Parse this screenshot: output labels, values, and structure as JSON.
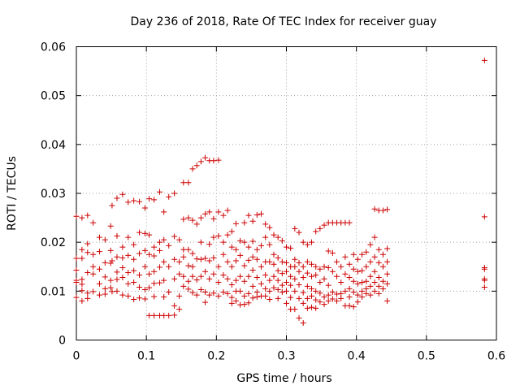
{
  "chart_data": {
    "type": "scatter",
    "title": "Day 236 of 2018, Rate Of TEC Index for receiver guay",
    "xlabel": "GPS time / hours",
    "ylabel": "ROTI / TECUs",
    "xlim": [
      0,
      0.6
    ],
    "ylim": [
      0,
      0.06
    ],
    "x_ticks": [
      "0",
      "0.1",
      "0.2",
      "0.3",
      "0.4",
      "0.5",
      "0.6"
    ],
    "y_ticks": [
      "0",
      "0.01",
      "0.02",
      "0.03",
      "0.04",
      "0.05",
      "0.06"
    ],
    "grid": true,
    "marker": "+",
    "color": "#cc0000",
    "points": [
      [
        0.0,
        0.0253
      ],
      [
        0.0,
        0.0167
      ],
      [
        0.0,
        0.0143
      ],
      [
        0.0,
        0.0122
      ],
      [
        0.0,
        0.0118
      ],
      [
        0.0,
        0.0087
      ],
      [
        0.008,
        0.025
      ],
      [
        0.008,
        0.0185
      ],
      [
        0.008,
        0.0167
      ],
      [
        0.008,
        0.0124
      ],
      [
        0.008,
        0.0114
      ],
      [
        0.008,
        0.0101
      ],
      [
        0.008,
        0.008
      ],
      [
        0.016,
        0.0255
      ],
      [
        0.016,
        0.0197
      ],
      [
        0.016,
        0.0179
      ],
      [
        0.016,
        0.0138
      ],
      [
        0.016,
        0.0096
      ],
      [
        0.016,
        0.0085
      ],
      [
        0.024,
        0.024
      ],
      [
        0.024,
        0.0175
      ],
      [
        0.024,
        0.015
      ],
      [
        0.024,
        0.0135
      ],
      [
        0.024,
        0.0099
      ],
      [
        0.033,
        0.021
      ],
      [
        0.033,
        0.0181
      ],
      [
        0.033,
        0.0145
      ],
      [
        0.033,
        0.0115
      ],
      [
        0.033,
        0.0092
      ],
      [
        0.041,
        0.0205
      ],
      [
        0.041,
        0.0158
      ],
      [
        0.041,
        0.0129
      ],
      [
        0.041,
        0.0105
      ],
      [
        0.041,
        0.0094
      ],
      [
        0.049,
        0.0233
      ],
      [
        0.049,
        0.0183
      ],
      [
        0.049,
        0.0157
      ],
      [
        0.049,
        0.0122
      ],
      [
        0.049,
        0.0107
      ],
      [
        0.051,
        0.0275
      ],
      [
        0.051,
        0.0162
      ],
      [
        0.051,
        0.0099
      ],
      [
        0.058,
        0.029
      ],
      [
        0.058,
        0.0213
      ],
      [
        0.058,
        0.017
      ],
      [
        0.058,
        0.0139
      ],
      [
        0.058,
        0.0124
      ],
      [
        0.058,
        0.01
      ],
      [
        0.066,
        0.0298
      ],
      [
        0.066,
        0.019
      ],
      [
        0.066,
        0.0168
      ],
      [
        0.066,
        0.0148
      ],
      [
        0.066,
        0.0128
      ],
      [
        0.066,
        0.0092
      ],
      [
        0.074,
        0.0282
      ],
      [
        0.074,
        0.021
      ],
      [
        0.074,
        0.0173
      ],
      [
        0.074,
        0.0138
      ],
      [
        0.074,
        0.0115
      ],
      [
        0.074,
        0.009
      ],
      [
        0.082,
        0.0285
      ],
      [
        0.082,
        0.0195
      ],
      [
        0.082,
        0.0165
      ],
      [
        0.082,
        0.0142
      ],
      [
        0.082,
        0.0118
      ],
      [
        0.082,
        0.0083
      ],
      [
        0.09,
        0.0283
      ],
      [
        0.09,
        0.022
      ],
      [
        0.09,
        0.0177
      ],
      [
        0.09,
        0.0133
      ],
      [
        0.09,
        0.0108
      ],
      [
        0.09,
        0.0086
      ],
      [
        0.098,
        0.027
      ],
      [
        0.098,
        0.0218
      ],
      [
        0.098,
        0.0183
      ],
      [
        0.098,
        0.015
      ],
      [
        0.098,
        0.0103
      ],
      [
        0.098,
        0.0084
      ],
      [
        0.104,
        0.0289
      ],
      [
        0.104,
        0.0215
      ],
      [
        0.104,
        0.0175
      ],
      [
        0.104,
        0.0135
      ],
      [
        0.104,
        0.0107
      ],
      [
        0.104,
        0.005
      ],
      [
        0.111,
        0.0287
      ],
      [
        0.111,
        0.019
      ],
      [
        0.111,
        0.0172
      ],
      [
        0.111,
        0.014
      ],
      [
        0.111,
        0.0116
      ],
      [
        0.111,
        0.0089
      ],
      [
        0.111,
        0.005
      ],
      [
        0.119,
        0.0303
      ],
      [
        0.119,
        0.02
      ],
      [
        0.119,
        0.0183
      ],
      [
        0.119,
        0.0149
      ],
      [
        0.119,
        0.0117
      ],
      [
        0.119,
        0.005
      ],
      [
        0.125,
        0.0262
      ],
      [
        0.125,
        0.0205
      ],
      [
        0.125,
        0.016
      ],
      [
        0.125,
        0.0122
      ],
      [
        0.125,
        0.0088
      ],
      [
        0.125,
        0.005
      ],
      [
        0.132,
        0.0293
      ],
      [
        0.132,
        0.0193
      ],
      [
        0.132,
        0.015
      ],
      [
        0.132,
        0.0098
      ],
      [
        0.132,
        0.005
      ],
      [
        0.14,
        0.03
      ],
      [
        0.14,
        0.0212
      ],
      [
        0.14,
        0.0165
      ],
      [
        0.14,
        0.0125
      ],
      [
        0.14,
        0.007
      ],
      [
        0.14,
        0.0051
      ],
      [
        0.147,
        0.0205
      ],
      [
        0.147,
        0.016
      ],
      [
        0.147,
        0.0135
      ],
      [
        0.147,
        0.009
      ],
      [
        0.147,
        0.0063
      ],
      [
        0.153,
        0.0322
      ],
      [
        0.153,
        0.0247
      ],
      [
        0.153,
        0.0185
      ],
      [
        0.153,
        0.017
      ],
      [
        0.153,
        0.013
      ],
      [
        0.153,
        0.011
      ],
      [
        0.16,
        0.0322
      ],
      [
        0.16,
        0.025
      ],
      [
        0.16,
        0.0185
      ],
      [
        0.16,
        0.0152
      ],
      [
        0.16,
        0.012
      ],
      [
        0.16,
        0.0104
      ],
      [
        0.166,
        0.035
      ],
      [
        0.166,
        0.0245
      ],
      [
        0.166,
        0.0177
      ],
      [
        0.166,
        0.015
      ],
      [
        0.166,
        0.013
      ],
      [
        0.166,
        0.0097
      ],
      [
        0.172,
        0.0357
      ],
      [
        0.172,
        0.0237
      ],
      [
        0.172,
        0.0166
      ],
      [
        0.172,
        0.0123
      ],
      [
        0.172,
        0.0092
      ],
      [
        0.178,
        0.0365
      ],
      [
        0.178,
        0.025
      ],
      [
        0.178,
        0.02
      ],
      [
        0.178,
        0.0165
      ],
      [
        0.178,
        0.013
      ],
      [
        0.178,
        0.0103
      ],
      [
        0.184,
        0.0373
      ],
      [
        0.184,
        0.0258
      ],
      [
        0.184,
        0.0167
      ],
      [
        0.184,
        0.014
      ],
      [
        0.184,
        0.0098
      ],
      [
        0.184,
        0.0077
      ],
      [
        0.19,
        0.0367
      ],
      [
        0.19,
        0.0262
      ],
      [
        0.19,
        0.0196
      ],
      [
        0.19,
        0.0162
      ],
      [
        0.19,
        0.0125
      ],
      [
        0.19,
        0.0092
      ],
      [
        0.196,
        0.0367
      ],
      [
        0.196,
        0.0248
      ],
      [
        0.196,
        0.021
      ],
      [
        0.196,
        0.0168
      ],
      [
        0.196,
        0.0135
      ],
      [
        0.196,
        0.0096
      ],
      [
        0.203,
        0.0368
      ],
      [
        0.203,
        0.0262
      ],
      [
        0.203,
        0.0213
      ],
      [
        0.203,
        0.015
      ],
      [
        0.203,
        0.0118
      ],
      [
        0.203,
        0.009
      ],
      [
        0.21,
        0.0255
      ],
      [
        0.21,
        0.02
      ],
      [
        0.21,
        0.0175
      ],
      [
        0.21,
        0.0133
      ],
      [
        0.21,
        0.0098
      ],
      [
        0.216,
        0.0265
      ],
      [
        0.216,
        0.0215
      ],
      [
        0.216,
        0.016
      ],
      [
        0.216,
        0.0125
      ],
      [
        0.216,
        0.0095
      ],
      [
        0.222,
        0.0222
      ],
      [
        0.222,
        0.019
      ],
      [
        0.222,
        0.015
      ],
      [
        0.222,
        0.0113
      ],
      [
        0.222,
        0.0087
      ],
      [
        0.222,
        0.0075
      ],
      [
        0.228,
        0.0238
      ],
      [
        0.228,
        0.0185
      ],
      [
        0.228,
        0.0162
      ],
      [
        0.228,
        0.0122
      ],
      [
        0.228,
        0.01
      ],
      [
        0.228,
        0.008
      ],
      [
        0.234,
        0.0203
      ],
      [
        0.234,
        0.0173
      ],
      [
        0.234,
        0.013
      ],
      [
        0.234,
        0.01
      ],
      [
        0.234,
        0.0072
      ],
      [
        0.24,
        0.024
      ],
      [
        0.24,
        0.02
      ],
      [
        0.24,
        0.0152
      ],
      [
        0.24,
        0.012
      ],
      [
        0.24,
        0.009
      ],
      [
        0.24,
        0.0073
      ],
      [
        0.246,
        0.0255
      ],
      [
        0.246,
        0.019
      ],
      [
        0.246,
        0.0163
      ],
      [
        0.246,
        0.013
      ],
      [
        0.246,
        0.0095
      ],
      [
        0.246,
        0.0076
      ],
      [
        0.252,
        0.0243
      ],
      [
        0.252,
        0.0202
      ],
      [
        0.252,
        0.017
      ],
      [
        0.252,
        0.0143
      ],
      [
        0.252,
        0.011
      ],
      [
        0.252,
        0.0086
      ],
      [
        0.258,
        0.0256
      ],
      [
        0.258,
        0.0185
      ],
      [
        0.258,
        0.0165
      ],
      [
        0.258,
        0.0128
      ],
      [
        0.258,
        0.0098
      ],
      [
        0.258,
        0.0088
      ],
      [
        0.264,
        0.0258
      ],
      [
        0.264,
        0.0193
      ],
      [
        0.264,
        0.015
      ],
      [
        0.264,
        0.0115
      ],
      [
        0.264,
        0.009
      ],
      [
        0.27,
        0.0237
      ],
      [
        0.27,
        0.021
      ],
      [
        0.27,
        0.016
      ],
      [
        0.27,
        0.0133
      ],
      [
        0.27,
        0.0105
      ],
      [
        0.27,
        0.009
      ],
      [
        0.276,
        0.023
      ],
      [
        0.276,
        0.0195
      ],
      [
        0.276,
        0.016
      ],
      [
        0.276,
        0.0122
      ],
      [
        0.276,
        0.01
      ],
      [
        0.276,
        0.0083
      ],
      [
        0.282,
        0.0215
      ],
      [
        0.282,
        0.0175
      ],
      [
        0.282,
        0.0155
      ],
      [
        0.282,
        0.013
      ],
      [
        0.282,
        0.0107
      ],
      [
        0.288,
        0.021
      ],
      [
        0.288,
        0.0168
      ],
      [
        0.288,
        0.0142
      ],
      [
        0.288,
        0.0122
      ],
      [
        0.288,
        0.0103
      ],
      [
        0.288,
        0.0085
      ],
      [
        0.294,
        0.0203
      ],
      [
        0.294,
        0.016
      ],
      [
        0.294,
        0.0136
      ],
      [
        0.294,
        0.0112
      ],
      [
        0.294,
        0.0098
      ],
      [
        0.3,
        0.019
      ],
      [
        0.3,
        0.0158
      ],
      [
        0.3,
        0.014
      ],
      [
        0.3,
        0.0118
      ],
      [
        0.3,
        0.01
      ],
      [
        0.3,
        0.0075
      ],
      [
        0.306,
        0.0188
      ],
      [
        0.306,
        0.015
      ],
      [
        0.306,
        0.013
      ],
      [
        0.306,
        0.0112
      ],
      [
        0.306,
        0.0087
      ],
      [
        0.306,
        0.0063
      ],
      [
        0.312,
        0.0228
      ],
      [
        0.312,
        0.0165
      ],
      [
        0.312,
        0.015
      ],
      [
        0.312,
        0.0125
      ],
      [
        0.312,
        0.01
      ],
      [
        0.312,
        0.0063
      ],
      [
        0.318,
        0.022
      ],
      [
        0.318,
        0.0158
      ],
      [
        0.318,
        0.014
      ],
      [
        0.318,
        0.0113
      ],
      [
        0.318,
        0.0085
      ],
      [
        0.318,
        0.0045
      ],
      [
        0.324,
        0.02
      ],
      [
        0.324,
        0.015
      ],
      [
        0.324,
        0.0128
      ],
      [
        0.324,
        0.0097
      ],
      [
        0.324,
        0.0075
      ],
      [
        0.324,
        0.0035
      ],
      [
        0.33,
        0.0195
      ],
      [
        0.33,
        0.016
      ],
      [
        0.33,
        0.0137
      ],
      [
        0.33,
        0.011
      ],
      [
        0.33,
        0.0085
      ],
      [
        0.33,
        0.0065
      ],
      [
        0.336,
        0.02
      ],
      [
        0.336,
        0.0155
      ],
      [
        0.336,
        0.013
      ],
      [
        0.336,
        0.0105
      ],
      [
        0.336,
        0.009
      ],
      [
        0.336,
        0.0067
      ],
      [
        0.342,
        0.0222
      ],
      [
        0.342,
        0.015
      ],
      [
        0.342,
        0.0133
      ],
      [
        0.342,
        0.01
      ],
      [
        0.342,
        0.0082
      ],
      [
        0.342,
        0.0065
      ],
      [
        0.348,
        0.0228
      ],
      [
        0.348,
        0.0145
      ],
      [
        0.348,
        0.0118
      ],
      [
        0.348,
        0.0096
      ],
      [
        0.348,
        0.0078
      ],
      [
        0.354,
        0.0235
      ],
      [
        0.354,
        0.015
      ],
      [
        0.354,
        0.0125
      ],
      [
        0.354,
        0.0088
      ],
      [
        0.354,
        0.0073
      ],
      [
        0.36,
        0.024
      ],
      [
        0.36,
        0.0182
      ],
      [
        0.36,
        0.0148
      ],
      [
        0.36,
        0.0112
      ],
      [
        0.36,
        0.0092
      ],
      [
        0.36,
        0.008
      ],
      [
        0.366,
        0.024
      ],
      [
        0.366,
        0.0178
      ],
      [
        0.366,
        0.014
      ],
      [
        0.366,
        0.0098
      ],
      [
        0.366,
        0.0084
      ],
      [
        0.372,
        0.024
      ],
      [
        0.372,
        0.016
      ],
      [
        0.372,
        0.013
      ],
      [
        0.372,
        0.0094
      ],
      [
        0.372,
        0.008
      ],
      [
        0.378,
        0.024
      ],
      [
        0.378,
        0.015
      ],
      [
        0.378,
        0.0118
      ],
      [
        0.378,
        0.0095
      ],
      [
        0.378,
        0.0085
      ],
      [
        0.384,
        0.024
      ],
      [
        0.384,
        0.017
      ],
      [
        0.384,
        0.0135
      ],
      [
        0.384,
        0.01
      ],
      [
        0.384,
        0.007
      ],
      [
        0.39,
        0.024
      ],
      [
        0.39,
        0.0155
      ],
      [
        0.39,
        0.0128
      ],
      [
        0.39,
        0.0105
      ],
      [
        0.39,
        0.0088
      ],
      [
        0.39,
        0.007
      ],
      [
        0.396,
        0.0175
      ],
      [
        0.396,
        0.0145
      ],
      [
        0.396,
        0.012
      ],
      [
        0.396,
        0.0098
      ],
      [
        0.396,
        0.0068
      ],
      [
        0.402,
        0.0165
      ],
      [
        0.402,
        0.014
      ],
      [
        0.402,
        0.0115
      ],
      [
        0.402,
        0.0092
      ],
      [
        0.402,
        0.0078
      ],
      [
        0.408,
        0.0175
      ],
      [
        0.408,
        0.0142
      ],
      [
        0.408,
        0.0118
      ],
      [
        0.408,
        0.01
      ],
      [
        0.408,
        0.0088
      ],
      [
        0.414,
        0.018
      ],
      [
        0.414,
        0.015
      ],
      [
        0.414,
        0.012
      ],
      [
        0.414,
        0.0105
      ],
      [
        0.414,
        0.0095
      ],
      [
        0.42,
        0.0195
      ],
      [
        0.42,
        0.016
      ],
      [
        0.42,
        0.013
      ],
      [
        0.42,
        0.011
      ],
      [
        0.42,
        0.0092
      ],
      [
        0.426,
        0.0268
      ],
      [
        0.426,
        0.021
      ],
      [
        0.426,
        0.017
      ],
      [
        0.426,
        0.014
      ],
      [
        0.426,
        0.0118
      ],
      [
        0.426,
        0.01
      ],
      [
        0.432,
        0.0265
      ],
      [
        0.432,
        0.0185
      ],
      [
        0.432,
        0.0158
      ],
      [
        0.432,
        0.0128
      ],
      [
        0.432,
        0.011
      ],
      [
        0.432,
        0.0095
      ],
      [
        0.438,
        0.0265
      ],
      [
        0.438,
        0.0175
      ],
      [
        0.438,
        0.015
      ],
      [
        0.438,
        0.012
      ],
      [
        0.438,
        0.0105
      ],
      [
        0.444,
        0.0267
      ],
      [
        0.444,
        0.0187
      ],
      [
        0.444,
        0.016
      ],
      [
        0.444,
        0.0135
      ],
      [
        0.444,
        0.0115
      ],
      [
        0.444,
        0.008
      ],
      [
        0.583,
        0.0572
      ],
      [
        0.583,
        0.0252
      ],
      [
        0.583,
        0.0148
      ],
      [
        0.583,
        0.0145
      ],
      [
        0.583,
        0.0125
      ],
      [
        0.583,
        0.0122
      ],
      [
        0.583,
        0.0108
      ]
    ]
  }
}
